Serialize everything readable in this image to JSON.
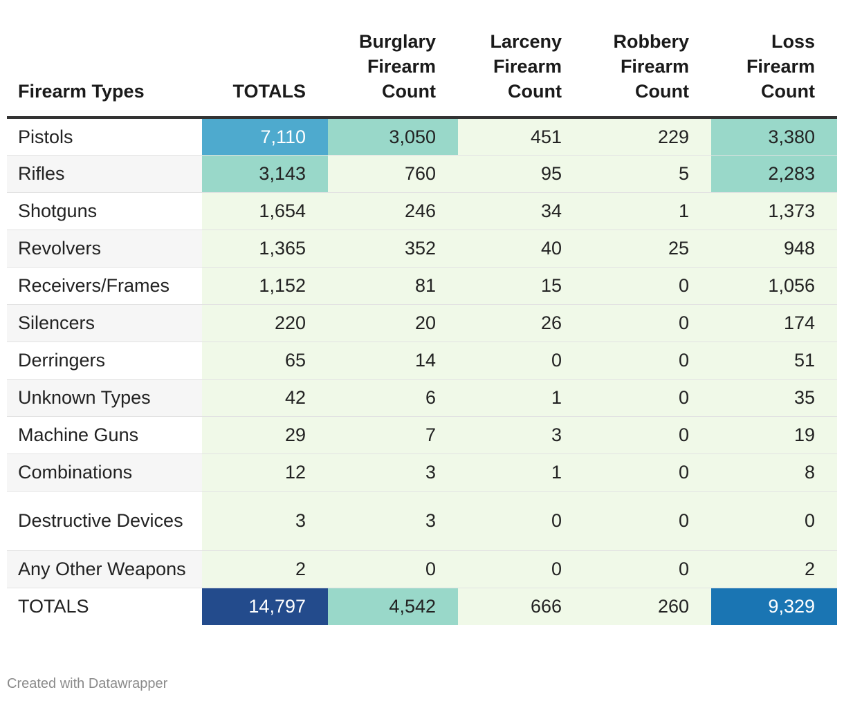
{
  "chart_data": {
    "type": "table",
    "title": "",
    "columns": [
      "Firearm Types",
      "TOTALS",
      "Burglary Firearm Count",
      "Larceny Firearm Count",
      "Robbery Firearm Count",
      "Loss Firearm Count"
    ],
    "rows": [
      {
        "label": "Pistols",
        "values": [
          "7,110",
          "3,050",
          "451",
          "229",
          "3,380"
        ]
      },
      {
        "label": "Rifles",
        "values": [
          "3,143",
          "760",
          "95",
          "5",
          "2,283"
        ]
      },
      {
        "label": "Shotguns",
        "values": [
          "1,654",
          "246",
          "34",
          "1",
          "1,373"
        ]
      },
      {
        "label": "Revolvers",
        "values": [
          "1,365",
          "352",
          "40",
          "25",
          "948"
        ]
      },
      {
        "label": "Receivers/Frames",
        "values": [
          "1,152",
          "81",
          "15",
          "0",
          "1,056"
        ]
      },
      {
        "label": "Silencers",
        "values": [
          "220",
          "20",
          "26",
          "0",
          "174"
        ]
      },
      {
        "label": "Derringers",
        "values": [
          "65",
          "14",
          "0",
          "0",
          "51"
        ]
      },
      {
        "label": "Unknown Types",
        "values": [
          "42",
          "6",
          "1",
          "0",
          "35"
        ]
      },
      {
        "label": "Machine Guns",
        "values": [
          "29",
          "7",
          "3",
          "0",
          "19"
        ]
      },
      {
        "label": "Combinations",
        "values": [
          "12",
          "3",
          "1",
          "0",
          "8"
        ]
      },
      {
        "label": "Destructive Devices",
        "values": [
          "3",
          "3",
          "0",
          "0",
          "0"
        ]
      },
      {
        "label": "Any Other Weapons",
        "values": [
          "2",
          "0",
          "0",
          "0",
          "2"
        ]
      },
      {
        "label": "TOTALS",
        "values": [
          "14,797",
          "4,542",
          "666",
          "260",
          "9,329"
        ]
      }
    ],
    "color_scale": {
      "thresholds": [
        2000,
        5000,
        9000,
        12000
      ],
      "colors": [
        "#f0f9e8",
        "#99d8c9",
        "#4eaace",
        "#1a75b3",
        "#234b8c"
      ],
      "text_dark": "#222222",
      "text_light": "#ffffff"
    }
  },
  "footer": {
    "credit": "Created with Datawrapper"
  }
}
